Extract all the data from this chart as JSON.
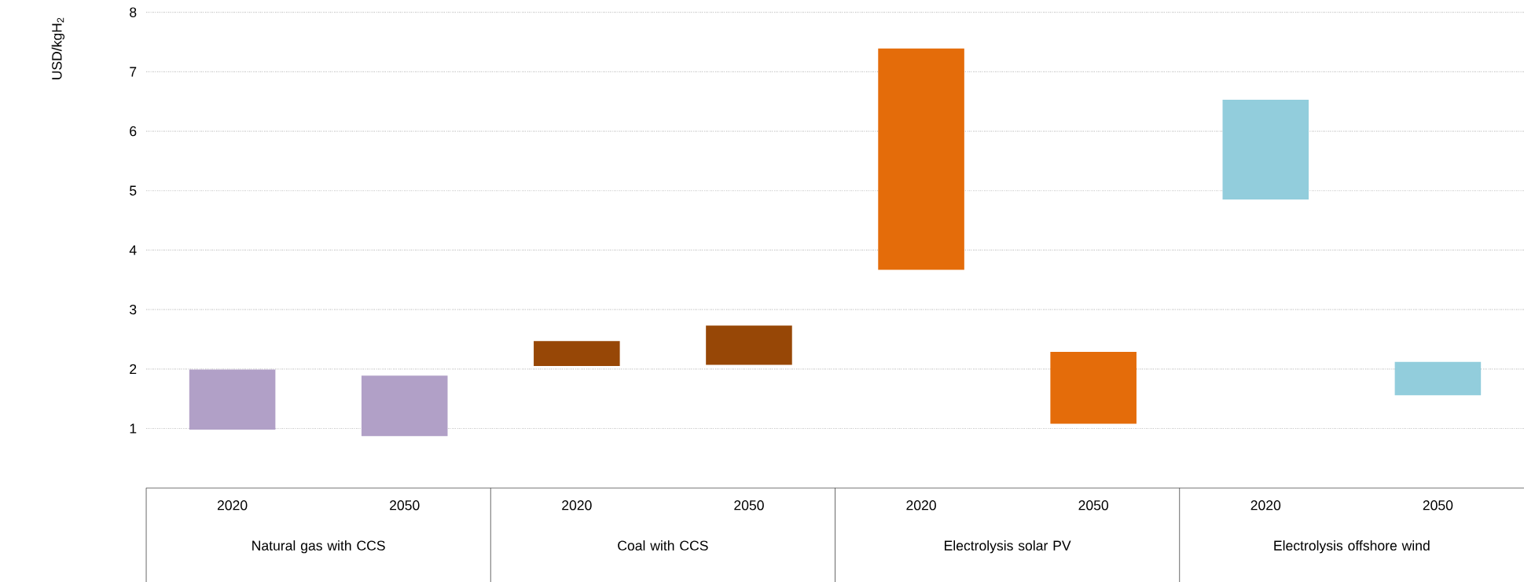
{
  "chart_data": {
    "type": "bar",
    "ylabel": "USD/kgH$_{2}$",
    "categories": [
      "2020",
      "2050",
      "2020",
      "2050",
      "2020",
      "2050",
      "2020",
      "2050"
    ],
    "base": [
      0.98,
      0.87,
      2.05,
      2.07,
      3.67,
      1.08,
      4.85,
      1.56
    ],
    "values": [
      1.01,
      1.02,
      0.42,
      0.66,
      3.72,
      1.21,
      1.68,
      0.56
    ],
    "colors": [
      "#b1a0c7",
      "#b1a0c7",
      "#974706",
      "#974706",
      "#e46c0a",
      "#e46c0a",
      "#92cddc",
      "#92cddc"
    ],
    "ylim": [
      0,
      8
    ],
    "yticks": [
      1,
      2,
      3,
      4,
      5,
      6,
      7,
      8
    ],
    "grid": "y",
    "annotations": [
      "Natural gas with CCS",
      "Coal with CCS",
      "Electrolysis solar PV",
      "Electrolysis offshore wind"
    ]
  }
}
